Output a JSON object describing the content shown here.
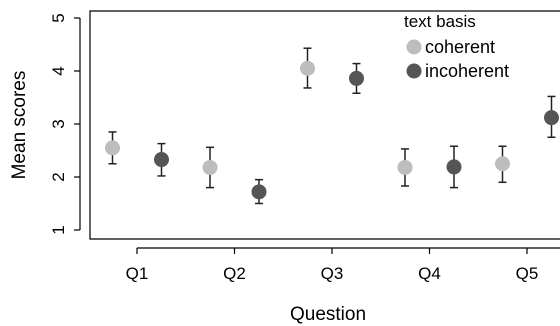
{
  "chart_data": {
    "type": "scatter",
    "title": "",
    "xlabel": "Question",
    "ylabel": "Mean scores",
    "categories": [
      "Q1",
      "Q2",
      "Q3",
      "Q4",
      "Q5"
    ],
    "ylim": [
      1,
      5
    ],
    "yticks": [
      "1",
      "2",
      "3",
      "4",
      "5"
    ],
    "grid": false,
    "legend": {
      "title": "text basis",
      "placement": "top-right"
    },
    "series": [
      {
        "name": "coherent",
        "color": "#bdbdbd",
        "values": [
          2.55,
          2.18,
          4.05,
          2.18,
          2.25
        ],
        "lower": [
          2.25,
          1.8,
          3.68,
          1.83,
          1.9
        ],
        "upper": [
          2.85,
          2.56,
          4.43,
          2.53,
          2.58
        ]
      },
      {
        "name": "incoherent",
        "color": "#555555",
        "values": [
          2.33,
          1.72,
          3.86,
          2.19,
          3.12
        ],
        "lower": [
          2.02,
          1.5,
          3.58,
          1.8,
          2.75
        ],
        "upper": [
          2.63,
          1.95,
          4.14,
          2.58,
          3.52
        ]
      }
    ]
  }
}
